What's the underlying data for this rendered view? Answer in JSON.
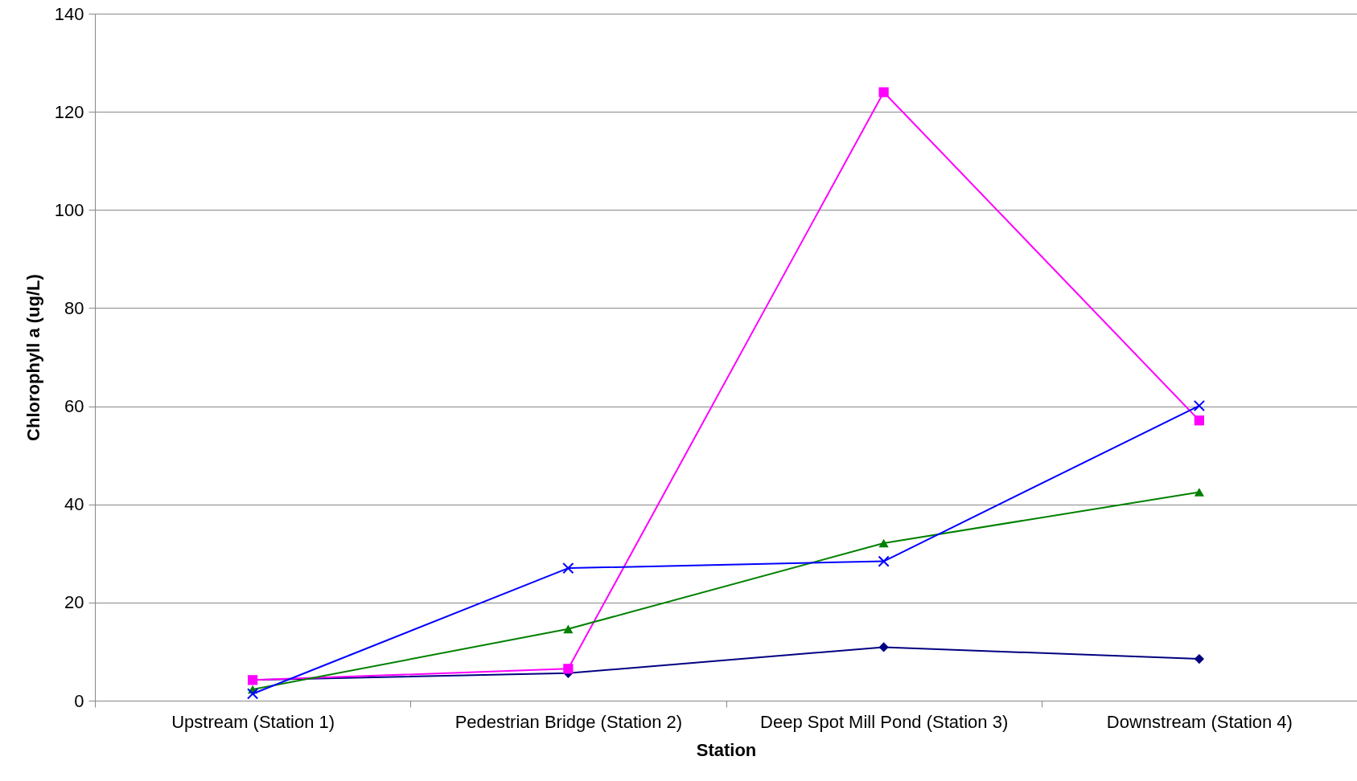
{
  "chart_data": {
    "type": "line",
    "xlabel": "Station",
    "ylabel": "Chlorophyll a (ug/L)",
    "categories": [
      "Upstream (Station 1)",
      "Pedestrian Bridge (Station 2)",
      "Deep Spot Mill Pond (Station 3)",
      "Downstream (Station 4)"
    ],
    "series": [
      {
        "color": "#000080",
        "marker": "diamond",
        "values": [
          4.2,
          5.6,
          10.9,
          8.5
        ]
      },
      {
        "color": "#ff00ff",
        "marker": "square",
        "values": [
          4.2,
          6.5,
          124,
          57.1
        ]
      },
      {
        "color": "#008000",
        "marker": "triangle",
        "values": [
          2.3,
          14.6,
          32.1,
          42.5
        ]
      },
      {
        "color": "#0000ff",
        "marker": "cross",
        "values": [
          1.4,
          27,
          28.4,
          60.1
        ]
      }
    ],
    "ylim": [
      0,
      140
    ],
    "yticks": [
      0,
      20,
      40,
      60,
      80,
      100,
      120,
      140
    ],
    "grid": "y"
  }
}
